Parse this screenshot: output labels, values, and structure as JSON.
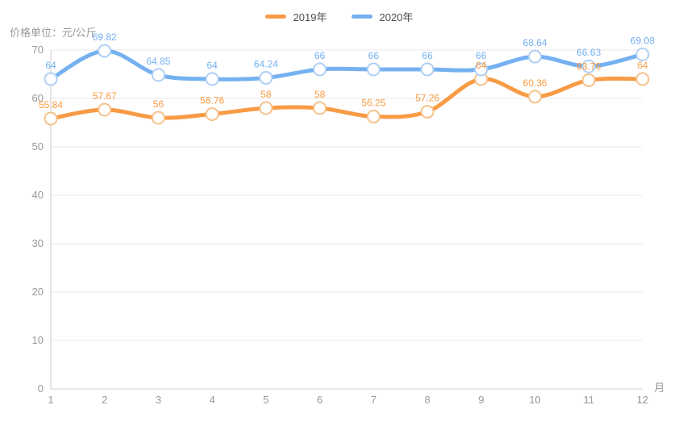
{
  "chart_data": {
    "type": "line",
    "title": "",
    "unit_label": "价格单位：元/公斤",
    "x_axis_name": "月",
    "categories": [
      "1",
      "2",
      "3",
      "4",
      "5",
      "6",
      "7",
      "8",
      "9",
      "10",
      "11",
      "12"
    ],
    "series": [
      {
        "name": "2019年",
        "color": "#f89b45",
        "marker_stroke": "#f6c28b",
        "values": [
          55.84,
          57.67,
          56,
          56.76,
          58,
          58,
          56.25,
          57.26,
          64,
          60.36,
          63.76,
          64
        ]
      },
      {
        "name": "2020年",
        "color": "#75b1f0",
        "marker_stroke": "#afd0f5",
        "values": [
          64,
          69.82,
          64.85,
          64,
          64.24,
          66,
          66,
          66,
          66,
          68.64,
          66.63,
          69.08
        ]
      }
    ],
    "ylim": [
      0,
      70
    ],
    "y_ticks": [
      0,
      10,
      20,
      30,
      40,
      50,
      60,
      70
    ],
    "smooth": true,
    "grid": true,
    "legend_position": "top-center",
    "style": {
      "grid_color": "#e9e9e9",
      "axis_color": "#cccccc",
      "tick_label_color": "#999999",
      "background": "#ffffff"
    }
  }
}
